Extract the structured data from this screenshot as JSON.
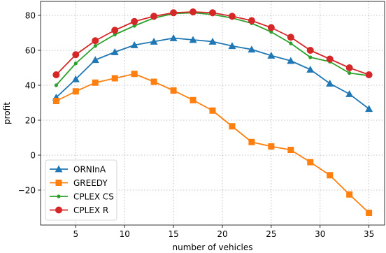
{
  "chart_data": {
    "type": "line",
    "xlabel": "number of vehicles",
    "ylabel": "profit",
    "xlim": [
      1.4,
      36.6
    ],
    "ylim": [
      -40,
      88
    ],
    "xticks": [
      5,
      10,
      15,
      20,
      25,
      30,
      35
    ],
    "yticks": [
      -20,
      0,
      20,
      40,
      60,
      80
    ],
    "ytick_labels": [
      "−20",
      "0",
      "20",
      "40",
      "60",
      "80"
    ],
    "grid": true,
    "legend_position": "lower-left",
    "x": [
      3,
      5,
      7,
      9,
      11,
      13,
      15,
      17,
      19,
      21,
      23,
      25,
      27,
      29,
      31,
      33,
      35
    ],
    "series": [
      {
        "name": "ORNInA",
        "color": "#1f77b4",
        "marker": "triangle",
        "values": [
          33,
          43.5,
          54.5,
          59,
          63,
          65,
          67,
          66,
          65,
          62.5,
          60.5,
          57,
          54,
          49,
          41,
          35,
          26.5
        ]
      },
      {
        "name": "GREEDY",
        "color": "#ff7f0e",
        "marker": "square",
        "values": [
          31,
          36.5,
          41.5,
          44,
          46.5,
          42,
          37,
          31.5,
          25.5,
          16.5,
          7.5,
          5,
          3,
          -4,
          -11.5,
          -22.5,
          -33
        ]
      },
      {
        "name": "CPLEX CS",
        "color": "#2ca02c",
        "marker": "dot",
        "values": [
          40,
          52.5,
          62.5,
          69,
          74,
          78.5,
          81,
          81.5,
          80.5,
          78.5,
          75.5,
          70.5,
          64,
          56,
          53.5,
          47,
          45.5
        ]
      },
      {
        "name": "CPLEX R",
        "color": "#d62728",
        "marker": "circle",
        "values": [
          46,
          57.5,
          65.5,
          71.5,
          76.5,
          79.5,
          81.5,
          82,
          81.5,
          79.5,
          77,
          73,
          67.5,
          60,
          55,
          50,
          46
        ]
      }
    ]
  }
}
